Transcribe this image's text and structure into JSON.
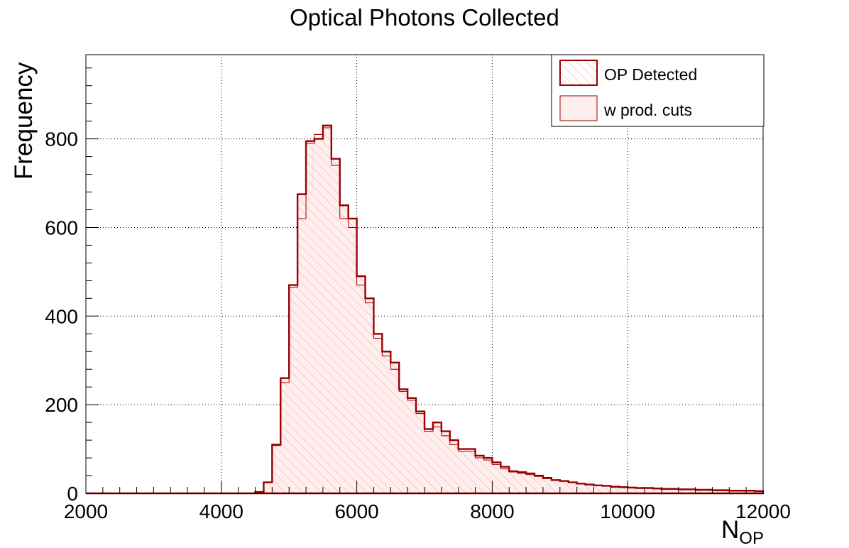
{
  "chart_data": {
    "type": "histogram",
    "title": "Optical Photons Collected",
    "xlabel": "N",
    "xlabel_sub": "OP",
    "ylabel": "Frequency",
    "xlim": [
      2000,
      12000
    ],
    "ylim": [
      0,
      990
    ],
    "grid": true,
    "legend_position": "top-right",
    "x_ticks": [
      "2000",
      "4000",
      "6000",
      "8000",
      "10000",
      "12000"
    ],
    "y_ticks": [
      "0",
      "200",
      "400",
      "600",
      "800"
    ],
    "bin_width": 125,
    "bin_start": 4500,
    "series": [
      {
        "name": "OP Detected",
        "style": "hatched",
        "color": "#990000",
        "values": [
          3,
          25,
          110,
          260,
          470,
          675,
          795,
          800,
          830,
          755,
          650,
          620,
          490,
          440,
          360,
          320,
          295,
          235,
          215,
          185,
          145,
          160,
          140,
          120,
          100,
          100,
          85,
          80,
          70,
          60,
          50,
          48,
          45,
          40,
          35,
          30,
          28,
          25,
          22,
          20,
          18,
          17,
          15,
          14,
          13,
          12,
          12,
          11,
          10,
          10,
          9,
          9,
          8,
          8,
          7,
          7,
          6,
          6,
          6,
          5
        ]
      },
      {
        "name": "w prod. cuts",
        "style": "filled",
        "color": "#990000",
        "fill": "#ffeeee",
        "values": [
          3,
          25,
          108,
          250,
          465,
          620,
          790,
          810,
          825,
          740,
          620,
          600,
          470,
          430,
          350,
          310,
          280,
          230,
          210,
          180,
          140,
          150,
          130,
          110,
          95,
          95,
          80,
          75,
          65,
          55,
          48,
          45,
          42,
          38,
          33,
          29,
          27,
          24,
          21,
          19,
          17,
          16,
          14,
          13,
          12,
          11,
          11,
          10,
          9,
          9,
          8,
          8,
          7,
          7,
          6,
          6,
          5,
          5,
          5,
          4
        ]
      }
    ]
  }
}
